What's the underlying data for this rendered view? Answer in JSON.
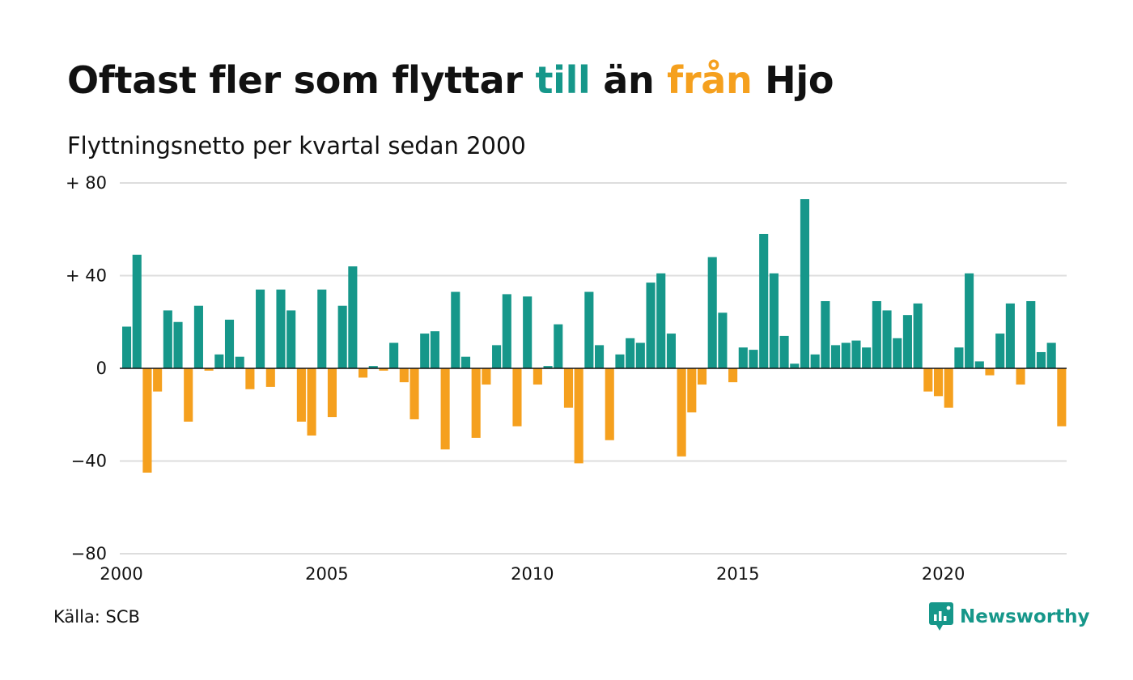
{
  "header": {
    "title_part1": "Oftast fler som flyttar ",
    "title_till": "till",
    "title_part2": " än ",
    "title_fran": "från",
    "title_part3": " Hjo",
    "subtitle": "Flyttningsnetto per kvartal sedan 2000"
  },
  "footer": {
    "source": "Källa: SCB",
    "brand": "Newsworthy"
  },
  "colors": {
    "positive": "#16978a",
    "negative": "#f5a01e",
    "grid": "#dddddd",
    "zero": "#111111"
  },
  "chart_data": {
    "type": "bar",
    "title": "Oftast fler som flyttar till än från Hjo",
    "subtitle": "Flyttningsnetto per kvartal sedan 2000",
    "x_start": 2000,
    "x_step": 0.25,
    "xlim": [
      2000,
      2023
    ],
    "x_ticks": [
      2000,
      2005,
      2010,
      2015,
      2020
    ],
    "x_tick_labels": [
      "2000",
      "2005",
      "2010",
      "2015",
      "2020"
    ],
    "ylim": [
      -80,
      80
    ],
    "y_ticks": [
      80,
      40,
      0,
      -40,
      -80
    ],
    "y_tick_labels": [
      "+ 80",
      "+ 40",
      "0",
      "−40",
      "−80"
    ],
    "grid": true,
    "values": [
      18,
      49,
      -45,
      -10,
      25,
      20,
      -23,
      27,
      -1,
      6,
      21,
      5,
      -9,
      34,
      -8,
      34,
      25,
      -23,
      -29,
      34,
      -21,
      27,
      44,
      -4,
      1,
      -1,
      11,
      -6,
      -22,
      15,
      16,
      -35,
      33,
      5,
      -30,
      -7,
      10,
      32,
      -25,
      31,
      -7,
      1,
      19,
      -17,
      -41,
      33,
      10,
      -31,
      6,
      13,
      11,
      37,
      41,
      15,
      -38,
      -19,
      -7,
      48,
      24,
      -6,
      9,
      8,
      58,
      41,
      14,
      2,
      73,
      6,
      29,
      10,
      11,
      12,
      9,
      29,
      25,
      13,
      23,
      28,
      -10,
      -12,
      -17,
      9,
      41,
      3,
      -3,
      15,
      28,
      -7,
      29,
      7,
      11,
      -25
    ]
  }
}
